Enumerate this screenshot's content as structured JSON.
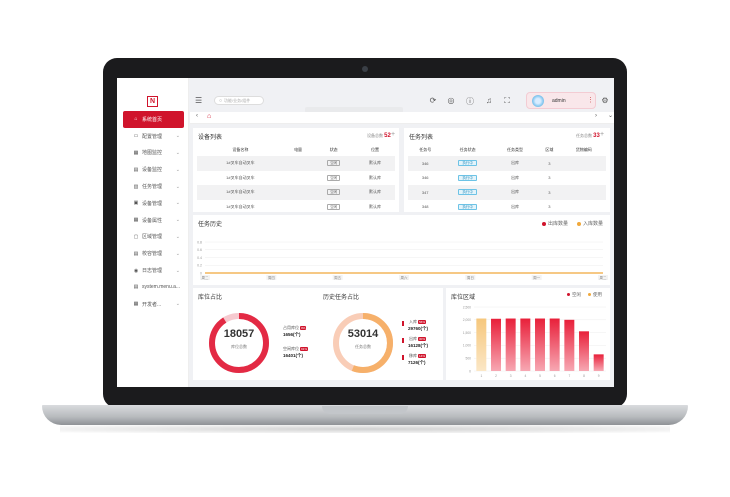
{
  "sidebar": {
    "logo": "N",
    "items": [
      {
        "icon": "home-icon",
        "glyph": "⌂",
        "label": "系统首页",
        "active": true,
        "chevron": ""
      },
      {
        "icon": "config-icon",
        "glyph": "▭",
        "label": "配置管理",
        "active": false,
        "chevron": "⌄"
      },
      {
        "icon": "map-icon",
        "glyph": "▦",
        "label": "地图监控",
        "active": false,
        "chevron": "⌄"
      },
      {
        "icon": "device-monitor-icon",
        "glyph": "▤",
        "label": "设备监控",
        "active": false,
        "chevron": "⌄"
      },
      {
        "icon": "task-icon",
        "glyph": "▥",
        "label": "任务管理",
        "active": false,
        "chevron": "⌄"
      },
      {
        "icon": "device-icon",
        "glyph": "▣",
        "label": "设备管理",
        "active": false,
        "chevron": "⌄"
      },
      {
        "icon": "property-icon",
        "glyph": "▦",
        "label": "设备属性",
        "active": false,
        "chevron": "⌄"
      },
      {
        "icon": "area-icon",
        "glyph": "▢",
        "label": "区域管理",
        "active": false,
        "chevron": "⌄"
      },
      {
        "icon": "storage-icon",
        "glyph": "▤",
        "label": "校容管理",
        "active": false,
        "chevron": "⌄"
      },
      {
        "icon": "log-icon",
        "glyph": "◉",
        "label": "日志管理",
        "active": false,
        "chevron": "⌄"
      },
      {
        "icon": "file-icon",
        "glyph": "▤",
        "label": "system.menu.a...",
        "active": false,
        "chevron": ""
      },
      {
        "icon": "dev-icon",
        "glyph": "▦",
        "label": "开发者...",
        "active": false,
        "chevron": "⌄"
      }
    ]
  },
  "topbar": {
    "search_placeholder": "功能/业务/组件",
    "username": "admin",
    "icons": [
      "refresh-icon",
      "translate-icon",
      "help-icon",
      "bell-icon",
      "fullscreen-icon",
      "settings-icon"
    ]
  },
  "device_list": {
    "title": "设备列表",
    "total_label": "设备总数",
    "total": "52",
    "plus": "+",
    "headers": [
      "设备名称",
      "电量",
      "状态",
      "位置"
    ],
    "rows": [
      [
        "1#叉车自动叉车",
        "",
        "空闲",
        "默认库"
      ],
      [
        "1#叉车自动叉车",
        "",
        "空闲",
        "默认库"
      ],
      [
        "1#叉车自动叉车",
        "",
        "空闲",
        "默认库"
      ],
      [
        "1#叉车自动叉车",
        "",
        "空闲",
        "默认库"
      ]
    ]
  },
  "task_list": {
    "title": "任务列表",
    "total_label": "任务总数",
    "total": "33",
    "plus": "+",
    "headers": [
      "任务号",
      "任务状态",
      "任务类型",
      "区域",
      "货物编码"
    ],
    "rows": [
      [
        "346",
        "执行中",
        "出库",
        "3",
        ""
      ],
      [
        "346",
        "执行中",
        "出库",
        "3",
        ""
      ],
      [
        "347",
        "执行中",
        "出库",
        "3",
        ""
      ],
      [
        "348",
        "执行中",
        "出库",
        "3",
        ""
      ]
    ]
  },
  "task_history": {
    "title": "任务历史",
    "legend": [
      {
        "label": "出库数量",
        "color": "#d0142c"
      },
      {
        "label": "入库数量",
        "color": "#f0a83b"
      }
    ],
    "chart_data": {
      "type": "line",
      "categories": [
        "周二",
        "周四",
        "周五",
        "周六",
        "周日",
        "周一",
        "周二"
      ],
      "yticks": [
        "0.8",
        "0.6",
        "0.4",
        "0.2",
        "0"
      ],
      "ylim": [
        0,
        1
      ],
      "series": [
        {
          "name": "出库数量",
          "color": "#d0142c",
          "values": [
            0,
            0,
            0,
            0,
            0,
            0,
            0
          ]
        },
        {
          "name": "入库数量",
          "color": "#f0a83b",
          "values": [
            0,
            0,
            0,
            0,
            0,
            0,
            0
          ]
        }
      ]
    }
  },
  "storage_ratio": {
    "title": "库位占比",
    "total": "18057",
    "total_label": "库位总数",
    "ring_ratio": 0.09,
    "stats": [
      {
        "label": "占用库位",
        "badge": "9%",
        "value": "1656(个)"
      },
      {
        "label": "空闲库位",
        "badge": "91%",
        "value": "16401(个)"
      }
    ]
  },
  "history_ratio": {
    "title": "历史任务占比",
    "total": "53014",
    "total_label": "任务总数",
    "stats": [
      {
        "label": "入库",
        "badge": "56%",
        "value": "29760(个)"
      },
      {
        "label": "出库",
        "badge": "30%",
        "value": "16128(个)"
      },
      {
        "label": "移库",
        "badge": "14%",
        "value": "7126(个)"
      }
    ]
  },
  "storage_area": {
    "title": "库位区域",
    "legend": [
      {
        "label": "空闲",
        "color": "#d0142c"
      },
      {
        "label": "使用",
        "color": "#f0a83b"
      }
    ],
    "chart_data": {
      "type": "bar",
      "yticks": [
        "2,500",
        "2,000",
        "1,500",
        "1,000",
        "500",
        "0"
      ],
      "ylim": [
        0,
        2500
      ],
      "categories": [
        "1",
        "2",
        "3",
        "4",
        "5",
        "6",
        "7",
        "8",
        "9"
      ],
      "values": [
        2050,
        2040,
        2050,
        2050,
        2050,
        2050,
        2000,
        1550,
        650
      ]
    }
  }
}
